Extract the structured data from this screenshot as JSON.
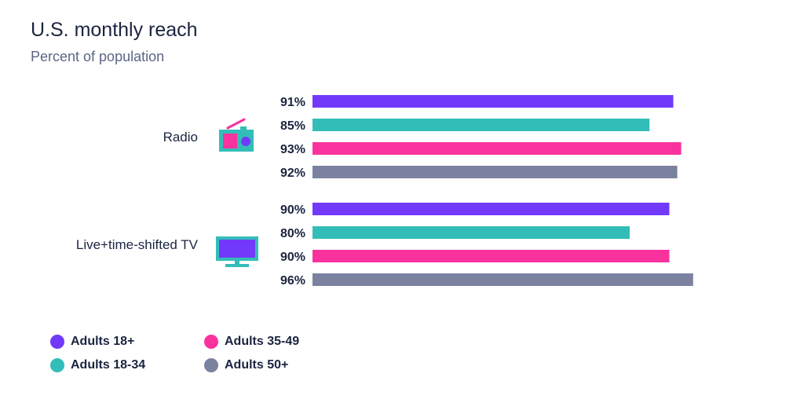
{
  "title": "U.S. monthly reach",
  "subtitle": "Percent of population",
  "chart_data": {
    "type": "bar",
    "orientation": "horizontal",
    "title": "U.S. monthly reach",
    "subtitle": "Percent of population",
    "categories": [
      "Radio",
      "Live+time-shifted TV"
    ],
    "category_icons": [
      "radio-icon",
      "tv-icon"
    ],
    "xlim": [
      0,
      100
    ],
    "grid": false,
    "legend_position": "bottom-left",
    "series": [
      {
        "name": "Adults 18+",
        "color": "#7239fb",
        "values": [
          91,
          90
        ],
        "labels": [
          "91%",
          "90%"
        ]
      },
      {
        "name": "Adults 18-34",
        "color": "#33bdb9",
        "values": [
          85,
          80
        ],
        "labels": [
          "85%",
          "80%"
        ]
      },
      {
        "name": "Adults 35-49",
        "color": "#fa329d",
        "values": [
          93,
          90
        ],
        "labels": [
          "93%",
          "90%"
        ]
      },
      {
        "name": "Adults 50+",
        "color": "#7b829f",
        "values": [
          92,
          96
        ],
        "labels": [
          "92%",
          "96%"
        ]
      }
    ]
  }
}
